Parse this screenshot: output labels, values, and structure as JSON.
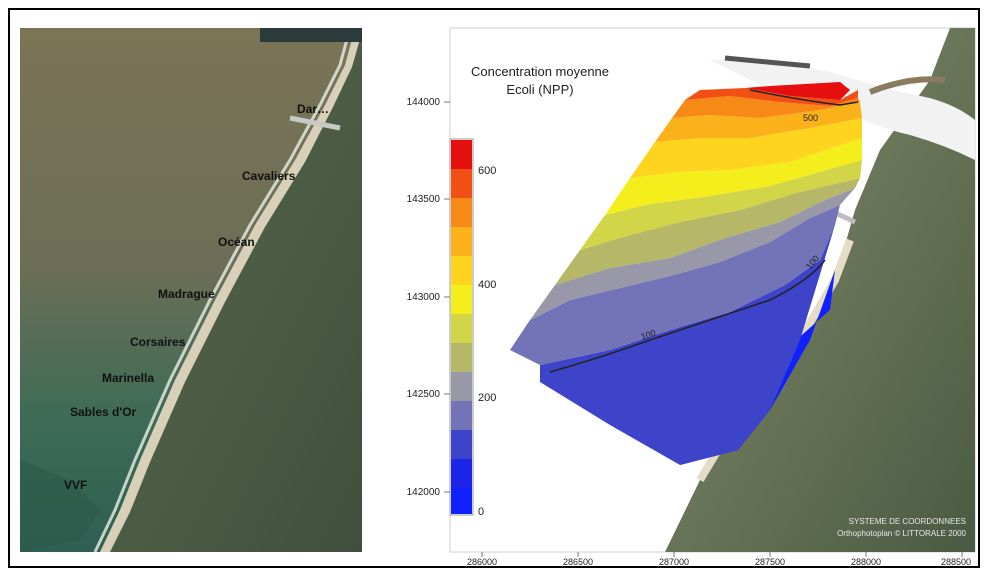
{
  "left_map": {
    "labels": [
      "Dar…",
      "Cavaliers",
      "Océan",
      "Madrague",
      "Corsaires",
      "Marinella",
      "Sables d'Or",
      "VVF"
    ]
  },
  "right_map": {
    "title_line1": "Concentration moyenne",
    "title_line2": "Ecoli (NPP)",
    "legend": {
      "ticks": [
        "600",
        "400",
        "200",
        "0"
      ],
      "colors": [
        "#e60f0f",
        "#f24f15",
        "#f78a17",
        "#fbb11a",
        "#ffd41f",
        "#f3ee1c",
        "#d2d547",
        "#b7b768",
        "#9898a8",
        "#7373b8",
        "#3d44c9",
        "#1d26e8",
        "#1020ff"
      ]
    },
    "y_ticks": [
      "144000",
      "143500",
      "143000",
      "142500",
      "142000"
    ],
    "x_ticks": [
      "286000",
      "286500",
      "287000",
      "287500",
      "288000",
      "288500"
    ],
    "contour_labels": [
      "500",
      "100",
      "100"
    ],
    "credits": [
      "SYSTEME DE COORDONNEES",
      "Orthophotoplan ©  LITTORALE 2000"
    ]
  }
}
